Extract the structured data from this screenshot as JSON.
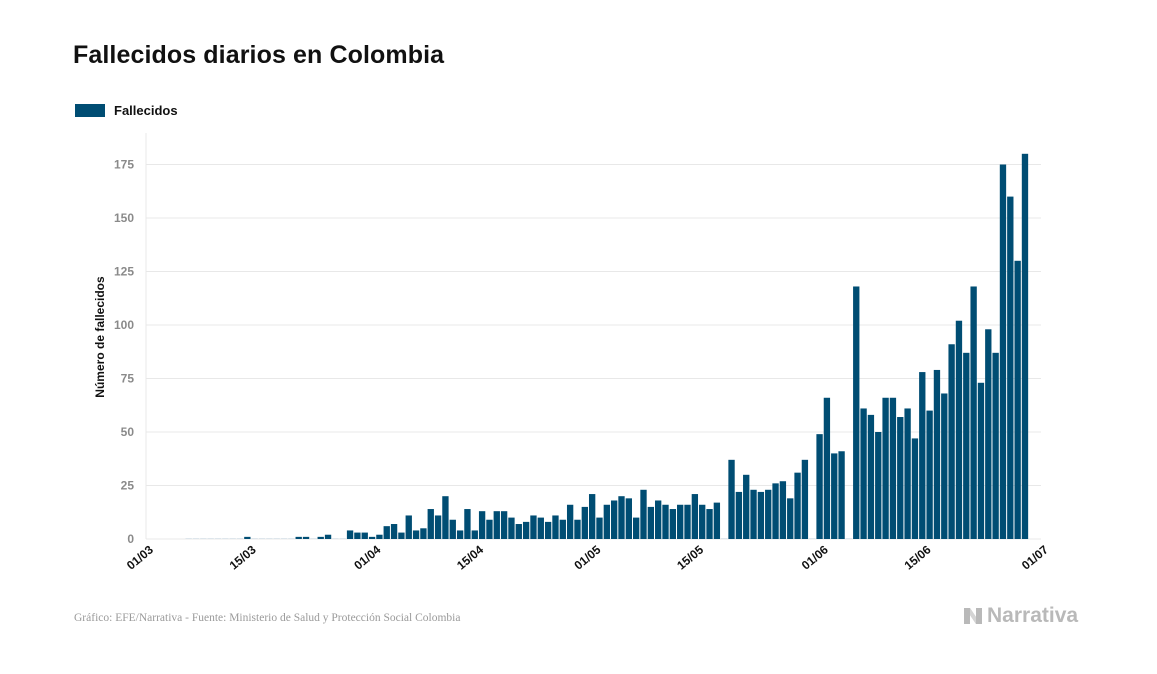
{
  "title": "Fallecidos diarios en Colombia",
  "source": "Gráfico: EFE/Narrativa - Fuente: Ministerio de Salud y Protección Social Colombia",
  "brand": {
    "name": "Narrativa",
    "icon": "narrativa-logo-icon"
  },
  "colors": {
    "bar": "#004d73",
    "grid": "#e8e8e8",
    "tick_text": "#8a8a8a",
    "axis_label": "#111111"
  },
  "chart_data": {
    "type": "bar",
    "ylabel": "Número de fallecidos",
    "xlabel": "",
    "ylim": [
      0,
      190
    ],
    "yticks": [
      0,
      25,
      50,
      75,
      100,
      125,
      150,
      175
    ],
    "grid": true,
    "legend_position": "top-left",
    "x_start": "01/03",
    "x_end": "01/07",
    "xticks": [
      {
        "label": "01/03",
        "day": 0
      },
      {
        "label": "15/03",
        "day": 14
      },
      {
        "label": "01/04",
        "day": 31
      },
      {
        "label": "15/04",
        "day": 45
      },
      {
        "label": "01/05",
        "day": 61
      },
      {
        "label": "15/05",
        "day": 75
      },
      {
        "label": "01/06",
        "day": 92
      },
      {
        "label": "15/06",
        "day": 106
      },
      {
        "label": "01/07",
        "day": 122
      }
    ],
    "series": [
      {
        "name": "Fallecidos",
        "start_date": "06/03",
        "values": [
          0,
          0,
          0,
          0,
          0,
          0,
          0,
          0,
          1,
          0,
          0,
          0,
          0,
          0,
          0,
          1,
          1,
          0,
          1,
          2,
          0,
          0,
          4,
          3,
          3,
          1,
          2,
          6,
          7,
          3,
          11,
          4,
          5,
          14,
          11,
          20,
          9,
          4,
          14,
          4,
          13,
          9,
          13,
          13,
          10,
          7,
          8,
          11,
          10,
          8,
          11,
          9,
          16,
          9,
          15,
          21,
          10,
          16,
          18,
          20,
          19,
          10,
          23,
          15,
          18,
          16,
          14,
          16,
          16,
          21,
          16,
          14,
          17,
          0,
          37,
          22,
          30,
          23,
          22,
          23,
          26,
          27,
          19,
          31,
          37,
          0,
          49,
          66,
          40,
          41,
          0,
          118,
          61,
          58,
          50,
          66,
          66,
          57,
          61,
          47,
          78,
          60,
          79,
          68,
          91,
          102,
          87,
          118,
          73,
          98,
          87,
          175,
          160,
          130,
          180
        ]
      }
    ]
  }
}
